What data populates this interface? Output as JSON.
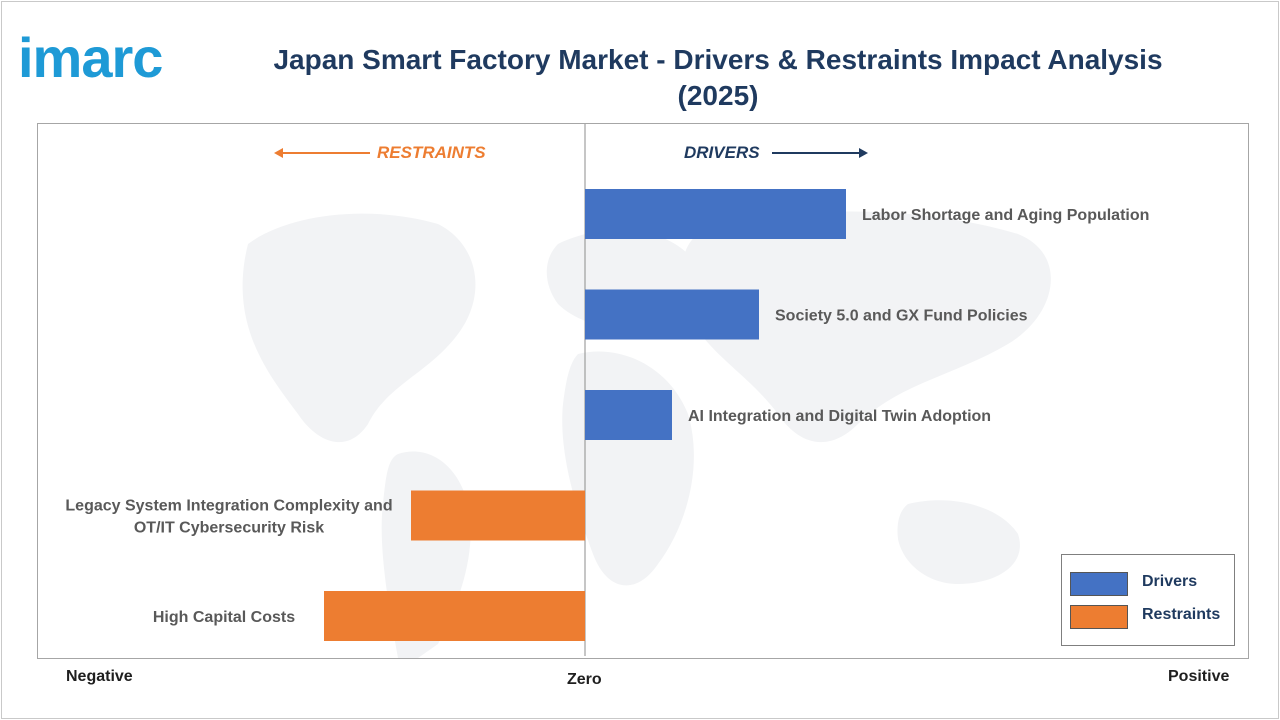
{
  "brand": {
    "logo_text": "imarc",
    "logo_color": "#1e9ad6"
  },
  "header": {
    "title_line1": "Japan Smart Factory Market - Drivers & Restraints Impact Analysis",
    "title_line2": "(2025)"
  },
  "direction_labels": {
    "restraints": "RESTRAINTS",
    "drivers": "DRIVERS"
  },
  "axis_words": {
    "negative": "Negative",
    "zero": "Zero",
    "positive": "Positive"
  },
  "legend": [
    {
      "label": "Drivers",
      "color": "#4472c4"
    },
    {
      "label": "Restraints",
      "color": "#ed7d31"
    }
  ],
  "chart_data": {
    "type": "bar",
    "orientation": "horizontal",
    "title": "Japan Smart Factory Market - Drivers & Restraints Impact Analysis (2025)",
    "xlim": [
      -3,
      3
    ],
    "categories": [
      "Labor Shortage and Aging Population",
      "Society 5.0 and GX Fund Policies",
      "AI Integration and Digital Twin Adoption",
      "Legacy System Integration Complexity and OT/IT Cybersecurity Risk",
      "High Capital Costs"
    ],
    "series": [
      {
        "name": "Drivers",
        "color": "#4472c4",
        "values": [
          1.5,
          1.0,
          0.5,
          null,
          null
        ]
      },
      {
        "name": "Restraints",
        "color": "#ed7d31",
        "values": [
          null,
          null,
          null,
          -1.0,
          -1.5
        ]
      }
    ],
    "label_lines": [
      [
        "Labor Shortage and Aging Population"
      ],
      [
        "Society 5.0 and GX Fund Policies"
      ],
      [
        "AI Integration and Digital Twin Adoption"
      ],
      [
        "Legacy System Integration Complexity and",
        "OT/IT Cybersecurity Risk"
      ],
      [
        "High Capital Costs"
      ]
    ],
    "grid": false,
    "legend_position": "bottom-right"
  }
}
